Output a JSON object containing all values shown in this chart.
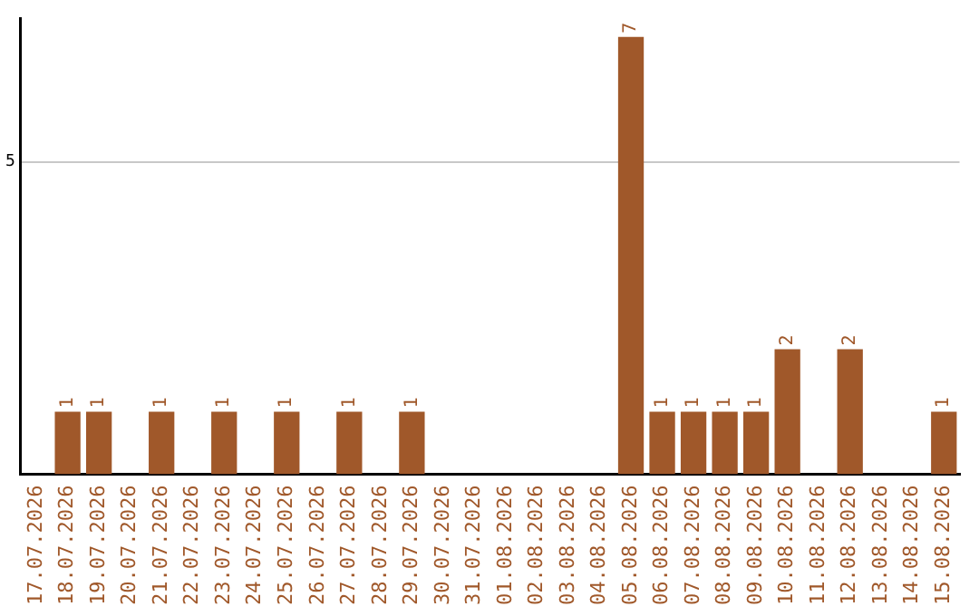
{
  "chart_data": {
    "type": "bar",
    "categories": [
      "17.07.2026",
      "18.07.2026",
      "19.07.2026",
      "20.07.2026",
      "21.07.2026",
      "22.07.2026",
      "23.07.2026",
      "24.07.2026",
      "25.07.2026",
      "26.07.2026",
      "27.07.2026",
      "28.07.2026",
      "29.07.2026",
      "30.07.2026",
      "31.07.2026",
      "01.08.2026",
      "02.08.2026",
      "03.08.2026",
      "04.08.2026",
      "05.08.2026",
      "06.08.2026",
      "07.08.2026",
      "08.08.2026",
      "09.08.2026",
      "10.08.2026",
      "11.08.2026",
      "12.08.2026",
      "13.08.2026",
      "14.08.2026",
      "15.08.2026"
    ],
    "values": [
      0,
      1,
      1,
      0,
      1,
      0,
      1,
      0,
      1,
      0,
      1,
      0,
      1,
      0,
      0,
      0,
      0,
      0,
      0,
      7,
      1,
      1,
      1,
      1,
      2,
      0,
      2,
      0,
      0,
      1
    ],
    "value_labels": [
      null,
      "1",
      "1",
      null,
      "1",
      null,
      "1",
      null,
      "1",
      null,
      "1",
      null,
      "1",
      null,
      null,
      null,
      null,
      null,
      null,
      "7",
      "1",
      "1",
      "1",
      "1",
      "2",
      null,
      "2",
      null,
      null,
      "1"
    ],
    "color": "#a0582a",
    "ylim": [
      0,
      7.3
    ],
    "yticks": [
      5
    ],
    "grid": "y",
    "legend": false
  }
}
